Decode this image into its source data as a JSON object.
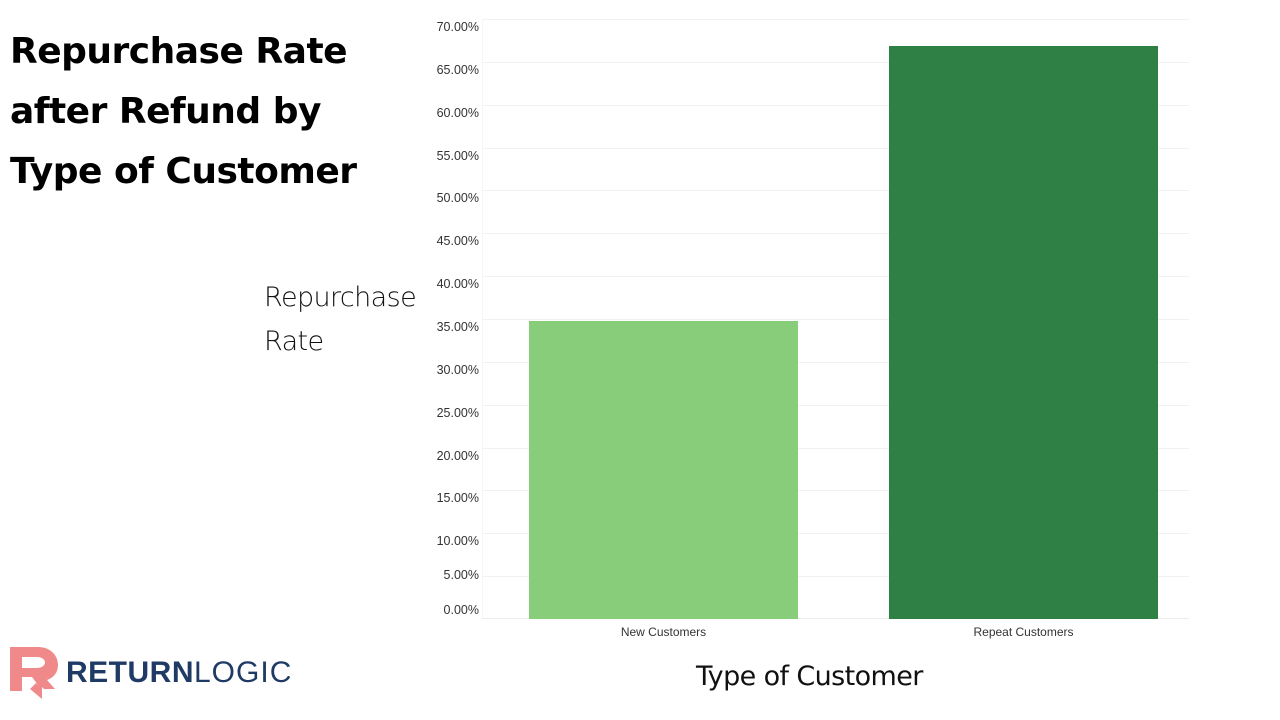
{
  "title": {
    "lines": [
      "Repurchase Rate",
      "after Refund by",
      "Type of Customer"
    ]
  },
  "axes": {
    "y_label_lines": [
      "Repurchase",
      "Rate"
    ],
    "x_label": "Type of Customer"
  },
  "logo": {
    "mark": "R",
    "text_bold": "RETURN",
    "text_light": "LOGIC",
    "mark_color": "#f08a8a",
    "text_color": "#1f3a64"
  },
  "chart_data": {
    "type": "bar",
    "title": "Repurchase Rate after Refund by Type of Customer",
    "xlabel": "Type of Customer",
    "ylabel": "Repurchase Rate",
    "categories": [
      "New Customers",
      "Repeat Customers"
    ],
    "values": [
      34.8,
      66.9
    ],
    "value_unit": "%",
    "colors": [
      "#88ce7a",
      "#2e8044"
    ],
    "ylim": [
      0,
      70
    ],
    "yticks": [
      0,
      5,
      10,
      15,
      20,
      25,
      30,
      35,
      40,
      45,
      50,
      55,
      60,
      65,
      70
    ],
    "ytick_labels": [
      "0.00%",
      "5.00%",
      "10.00%",
      "15.00%",
      "20.00%",
      "25.00%",
      "30.00%",
      "35.00%",
      "40.00%",
      "45.00%",
      "50.00%",
      "55.00%",
      "60.00%",
      "65.00%",
      "70.00%"
    ],
    "grid": true,
    "legend": null
  }
}
